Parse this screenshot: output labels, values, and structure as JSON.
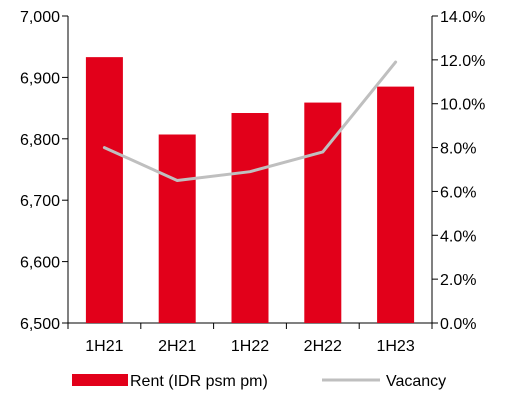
{
  "chart_data": {
    "type": "bar",
    "categories": [
      "1H21",
      "2H21",
      "1H22",
      "2H22",
      "1H23"
    ],
    "series": [
      {
        "name": "Rent (IDR psm pm)",
        "type": "bar",
        "axis": "left",
        "values": [
          6933,
          6807,
          6842,
          6859,
          6885
        ],
        "color": "#E2001A"
      },
      {
        "name": "Vacancy",
        "type": "line",
        "axis": "right",
        "values": [
          8.0,
          6.5,
          6.9,
          7.8,
          11.9
        ],
        "color": "#BFBFBF"
      }
    ],
    "y_left": {
      "lim": [
        6500,
        7000
      ],
      "ticks": [
        6500,
        6600,
        6700,
        6800,
        6900,
        7000
      ],
      "tick_labels": [
        "6,500",
        "6,600",
        "6,700",
        "6,800",
        "6,900",
        "7,000"
      ]
    },
    "y_right": {
      "lim": [
        0,
        14
      ],
      "ticks": [
        0,
        2,
        4,
        6,
        8,
        10,
        12,
        14
      ],
      "tick_labels": [
        "0.0%",
        "2.0%",
        "4.0%",
        "6.0%",
        "8.0%",
        "10.0%",
        "12.0%",
        "14.0%"
      ]
    },
    "title": "",
    "xlabel": "",
    "ylabel": "",
    "grid": false,
    "legend_position": "bottom"
  }
}
